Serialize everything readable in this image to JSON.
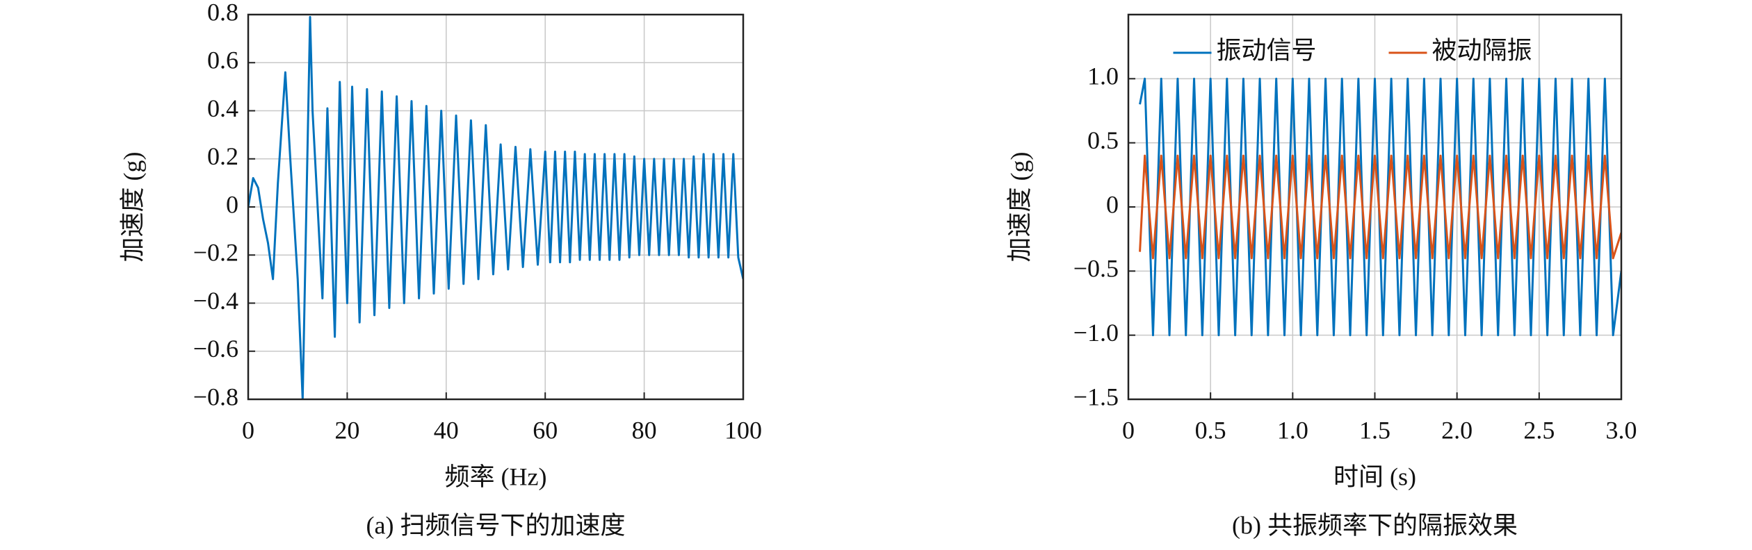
{
  "chart_data": [
    {
      "type": "line",
      "caption": "(a) 扫频信号下的加速度",
      "xlabel": "频率 (Hz)",
      "ylabel": "加速度 (g)",
      "color": "#0072bd",
      "grid": true,
      "x": [
        0,
        1,
        2,
        3,
        4,
        5,
        6,
        7.5,
        8.5,
        10,
        11,
        12.5,
        13,
        15,
        16,
        17.5,
        18.5,
        20,
        21,
        22.5,
        24,
        25.5,
        27,
        28.5,
        30,
        31.5,
        33,
        34.5,
        36,
        37.5,
        39,
        40.5,
        42,
        43.5,
        45,
        46.5,
        48,
        49.5,
        51,
        52.5,
        54,
        55.5,
        57,
        58.5,
        60,
        61,
        62,
        63,
        64,
        65,
        66,
        67,
        68,
        69,
        70,
        71,
        72,
        73,
        74,
        75,
        76,
        77,
        78,
        79,
        80,
        81,
        82,
        83,
        84,
        85,
        86,
        87,
        88,
        89,
        90,
        91,
        92,
        93,
        94,
        95,
        96,
        97,
        98,
        99,
        100
      ],
      "values": [
        0,
        0.12,
        0.08,
        -0.05,
        -0.15,
        -0.3,
        0.1,
        0.56,
        0.2,
        -0.3,
        -0.8,
        0.79,
        0.4,
        -0.38,
        0.41,
        -0.54,
        0.52,
        -0.4,
        0.5,
        -0.48,
        0.49,
        -0.45,
        0.48,
        -0.42,
        0.46,
        -0.4,
        0.44,
        -0.38,
        0.42,
        -0.36,
        0.4,
        -0.34,
        0.38,
        -0.32,
        0.36,
        -0.3,
        0.34,
        -0.28,
        0.26,
        -0.26,
        0.25,
        -0.25,
        0.24,
        -0.24,
        0.23,
        -0.23,
        0.23,
        -0.23,
        0.23,
        -0.23,
        0.23,
        -0.22,
        0.22,
        -0.22,
        0.22,
        -0.22,
        0.22,
        -0.22,
        0.22,
        -0.22,
        0.22,
        -0.21,
        0.21,
        -0.2,
        0.2,
        -0.2,
        0.2,
        -0.2,
        0.2,
        -0.2,
        0.2,
        -0.2,
        0.2,
        -0.21,
        0.21,
        -0.21,
        0.22,
        -0.21,
        0.22,
        -0.21,
        0.22,
        -0.21,
        0.22,
        -0.21,
        -0.3
      ],
      "xlim": [
        0,
        100
      ],
      "xticks": [
        0,
        20,
        40,
        60,
        80,
        100
      ],
      "ylim": [
        -0.8,
        0.8
      ],
      "yticks": [
        {
          "value": -0.8,
          "label": "−0.8"
        },
        {
          "value": -0.6,
          "label": "−0.6"
        },
        {
          "value": -0.4,
          "label": "−0.4"
        },
        {
          "value": -0.2,
          "label": "−0.2"
        },
        0,
        0.2,
        0.4,
        0.6,
        0.8
      ]
    },
    {
      "type": "line",
      "caption": "(b) 共振频率下的隔振效果",
      "xlabel": "时间 (s)",
      "ylabel": "加速度 (g)",
      "grid": true,
      "legend": "upper center",
      "x": [
        0.07,
        0.1,
        0.15,
        0.2,
        0.25,
        0.3,
        0.35,
        0.4,
        0.45,
        0.5,
        0.55,
        0.6,
        0.65,
        0.7,
        0.75,
        0.8,
        0.85,
        0.9,
        0.95,
        1.0,
        1.05,
        1.1,
        1.15,
        1.2,
        1.25,
        1.3,
        1.35,
        1.4,
        1.45,
        1.5,
        1.55,
        1.6,
        1.65,
        1.7,
        1.75,
        1.8,
        1.85,
        1.9,
        1.95,
        2.0,
        2.05,
        2.1,
        2.15,
        2.2,
        2.25,
        2.3,
        2.35,
        2.4,
        2.45,
        2.5,
        2.55,
        2.6,
        2.65,
        2.7,
        2.75,
        2.8,
        2.85,
        2.9,
        2.95,
        3.0
      ],
      "series": [
        {
          "name": "振动信号",
          "color": "#0072bd",
          "values": [
            0.8,
            1,
            -1,
            1,
            -1,
            1,
            -1,
            1,
            -1,
            1,
            -1,
            1,
            -1,
            1,
            -1,
            1,
            -1,
            1,
            -1,
            1,
            -1,
            1,
            -1,
            1,
            -1,
            1,
            -1,
            1,
            -1,
            1,
            -1,
            1,
            -1,
            1,
            -1,
            1,
            -1,
            1,
            -1,
            1,
            -1,
            1,
            -1,
            1,
            -1,
            1,
            -1,
            1,
            -1,
            1,
            -1,
            1,
            -1,
            1,
            -1,
            1,
            -1,
            1,
            -1,
            -0.5
          ]
        },
        {
          "name": "被动隔振",
          "color": "#d95319",
          "values": [
            -0.35,
            0.4,
            -0.4,
            0.4,
            -0.4,
            0.4,
            -0.4,
            0.4,
            -0.4,
            0.4,
            -0.4,
            0.4,
            -0.4,
            0.4,
            -0.4,
            0.4,
            -0.4,
            0.4,
            -0.4,
            0.4,
            -0.4,
            0.4,
            -0.4,
            0.4,
            -0.4,
            0.4,
            -0.4,
            0.4,
            -0.4,
            0.4,
            -0.4,
            0.4,
            -0.4,
            0.4,
            -0.4,
            0.4,
            -0.4,
            0.4,
            -0.4,
            0.4,
            -0.4,
            0.4,
            -0.4,
            0.4,
            -0.4,
            0.4,
            -0.4,
            0.4,
            -0.4,
            0.4,
            -0.4,
            0.4,
            -0.4,
            0.4,
            -0.4,
            0.4,
            -0.4,
            0.4,
            -0.4,
            -0.2
          ]
        }
      ],
      "xlim": [
        0,
        3
      ],
      "xticks": [
        0,
        0.5,
        {
          "value": 1,
          "label": "1.0"
        },
        1.5,
        {
          "value": 2,
          "label": "2.0"
        },
        2.5,
        {
          "value": 3,
          "label": "3.0"
        }
      ],
      "ylim": [
        -1.5,
        1.5
      ],
      "yticks": [
        {
          "value": -1.5,
          "label": "−1.5"
        },
        {
          "value": -1,
          "label": "−1.0"
        },
        {
          "value": -0.5,
          "label": "−0.5"
        },
        0,
        0.5,
        {
          "value": 1,
          "label": "1.0"
        }
      ]
    }
  ]
}
